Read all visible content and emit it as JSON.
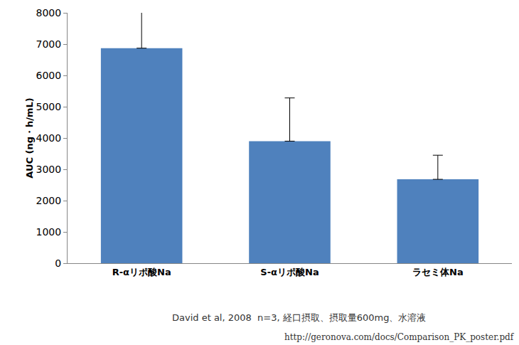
{
  "chart_data": {
    "type": "bar",
    "y_label": "AUC (ng・h/mL)",
    "categories": [
      "R-αリポ酸Na",
      "S-αリポ酸Na",
      "ラセミ体Na"
    ],
    "values": [
      6870,
      3900,
      2680
    ],
    "errors": [
      1380,
      1380,
      770
    ],
    "color": "#4f81bd",
    "ylim": [
      0,
      8000
    ],
    "yticks": [
      0,
      1000,
      2000,
      3000,
      4000,
      5000,
      6000,
      7000,
      8000
    ],
    "grid": false,
    "annotations": [
      "David et al, 2008  n=3, 経口摂取、摂取量600mg、水溶液",
      "http://geronova.com/docs/Comparison_PK_poster.pdf"
    ]
  }
}
